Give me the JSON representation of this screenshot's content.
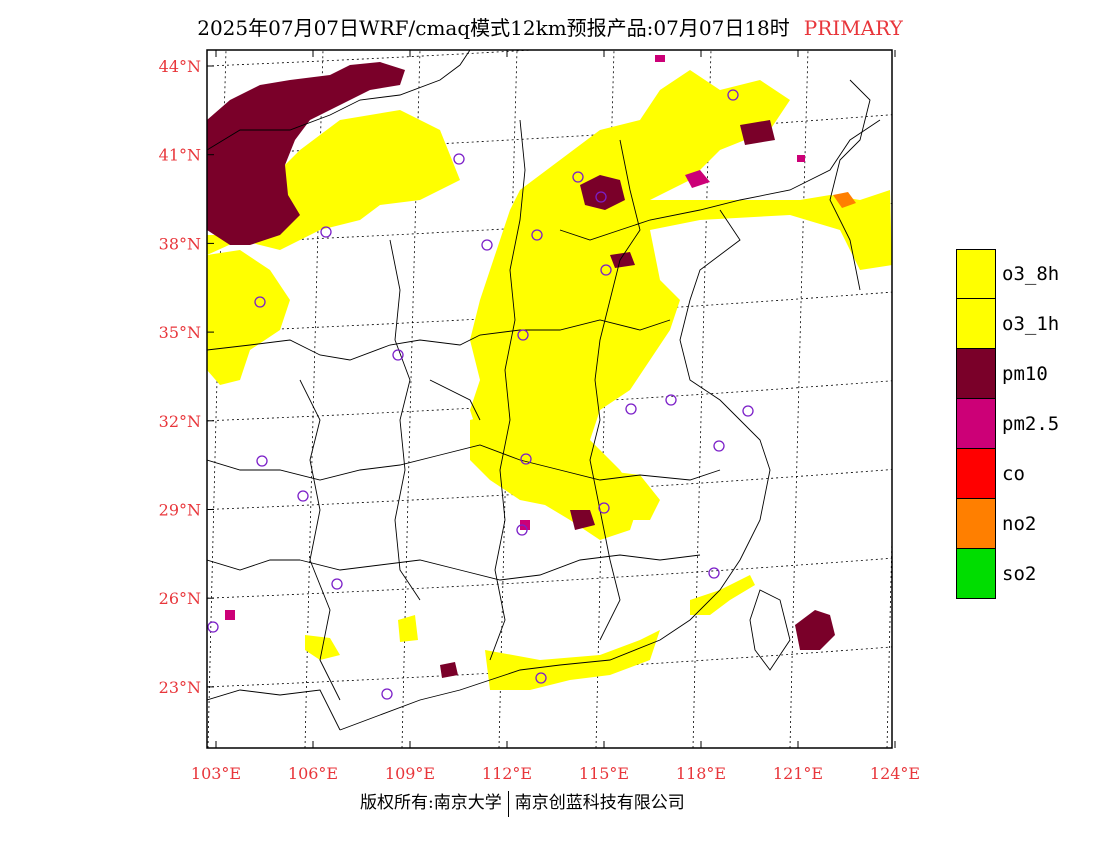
{
  "title": {
    "main": "2025年07月07日WRF/cmaq模式12km预报产品:07月07日18时",
    "tag": "PRIMARY",
    "tag_color": "#e8363b"
  },
  "map": {
    "lon_ticks": [
      "103°E",
      "106°E",
      "109°E",
      "112°E",
      "115°E",
      "118°E",
      "121°E",
      "124°E"
    ],
    "lat_ticks": [
      "44°N",
      "41°N",
      "38°N",
      "35°N",
      "32°N",
      "29°N",
      "26°N",
      "23°N"
    ],
    "tick_label_color": "#e8363b",
    "frame_color": "#000000",
    "boundary_color": "#000000",
    "station_marker_color": "#7b1fc8"
  },
  "legend": {
    "items": [
      {
        "label": "o3_8h",
        "color": "#ffff00"
      },
      {
        "label": "o3_1h",
        "color": "#ffff00"
      },
      {
        "label": "pm10",
        "color": "#7a0029"
      },
      {
        "label": "pm2.5",
        "color": "#cc0077"
      },
      {
        "label": "co",
        "color": "#ff0000"
      },
      {
        "label": "no2",
        "color": "#ff7f00"
      },
      {
        "label": "so2",
        "color": "#00dd00"
      }
    ]
  },
  "footer": {
    "left": "版权所有:南京大学",
    "right": "南京创蓝科技有限公司"
  }
}
